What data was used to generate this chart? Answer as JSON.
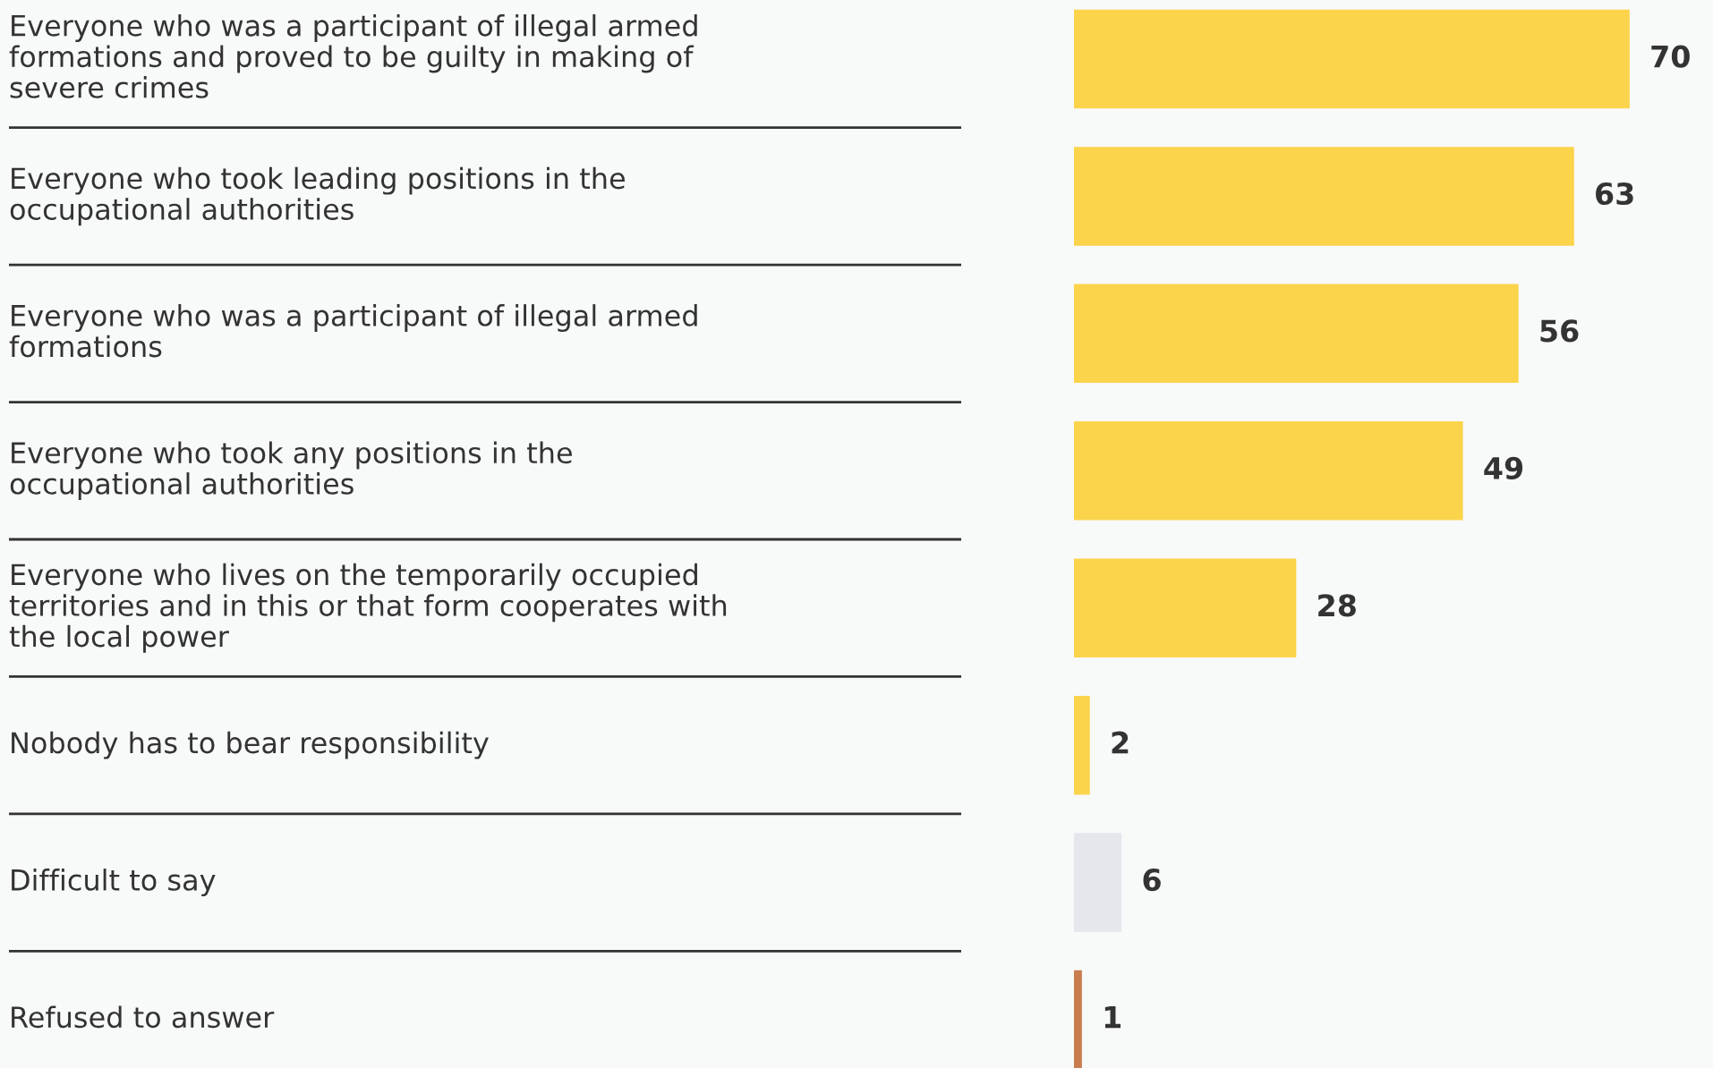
{
  "chart_data": {
    "type": "bar",
    "orientation": "horizontal",
    "data_labels": true,
    "categories": [
      "Everyone who was a participant of illegal armed\nformations and proved to be guilty in making of\nsevere crimes",
      "Everyone who took leading positions in the\noccupational authorities",
      "Everyone who was a participant of illegal armed\nformations",
      "Everyone who took any positions in the\noccupational authorities",
      "Everyone who lives on the temporarily occupied\nterritories and in this or that form cooperates with\nthe local power",
      "Nobody has to bear responsibility",
      "Difficult to say",
      "Refused to answer"
    ],
    "values": [
      70,
      63,
      56,
      49,
      28,
      2,
      6,
      1
    ],
    "colors": [
      "#fbd44c",
      "#fbd44c",
      "#fbd44c",
      "#fbd44c",
      "#fbd44c",
      "#fbd44c",
      "#e6e7ec",
      "#c97d4e"
    ]
  }
}
